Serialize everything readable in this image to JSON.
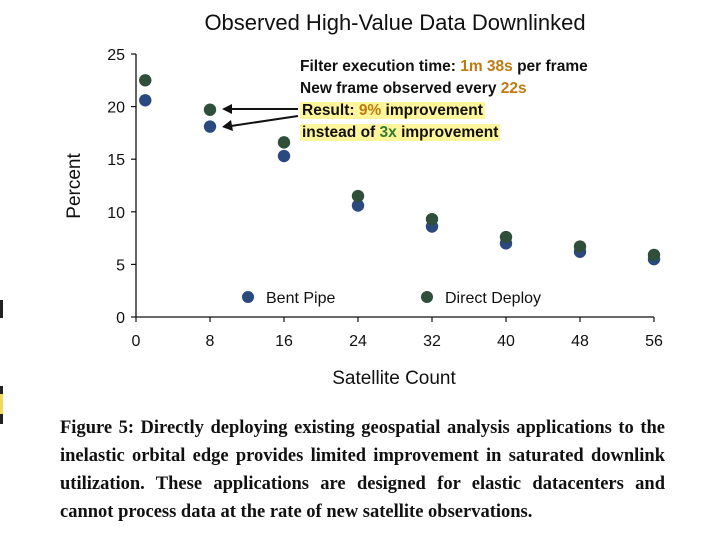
{
  "chart_data": {
    "type": "scatter",
    "title": "Observed High-Value Data Downlinked",
    "xlabel": "Satellite Count",
    "ylabel": "Percent",
    "xlim": [
      0,
      56
    ],
    "ylim": [
      0,
      25
    ],
    "xticks": [
      0,
      8,
      16,
      24,
      32,
      40,
      48,
      56
    ],
    "yticks": [
      0,
      5,
      10,
      15,
      20,
      25
    ],
    "grid": false,
    "legend_position": "bottom",
    "series": [
      {
        "name": "Bent Pipe",
        "color": "#2a4a7f",
        "x": [
          1,
          8,
          16,
          24,
          32,
          40,
          48,
          56
        ],
        "y": [
          20.6,
          18.1,
          15.3,
          10.6,
          8.6,
          7.0,
          6.2,
          5.5
        ]
      },
      {
        "name": "Direct Deploy",
        "color": "#2f4f3a",
        "x": [
          1,
          8,
          16,
          24,
          32,
          40,
          48,
          56
        ],
        "y": [
          22.5,
          19.7,
          16.6,
          11.5,
          9.3,
          7.6,
          6.7,
          5.9
        ]
      }
    ]
  },
  "annotation": {
    "line1_prefix": "Filter execution time: ",
    "line1_value": "1m 38s",
    "line1_suffix": " per frame",
    "line2_prefix": "New frame observed every ",
    "line2_value": "22s",
    "line3_prefix": "Result: ",
    "line3_value": "9%",
    "line3_suffix": " improvement",
    "line4_prefix": "instead of ",
    "line4_value": "3x",
    "line4_suffix": " improvement"
  },
  "caption": "Figure 5: Directly deploying existing geospatial analysis applications to the inelastic orbital edge provides limited improvement in saturated downlink utilization. These applications are designed for elastic datacenters and cannot process data at the rate of new satellite observations."
}
